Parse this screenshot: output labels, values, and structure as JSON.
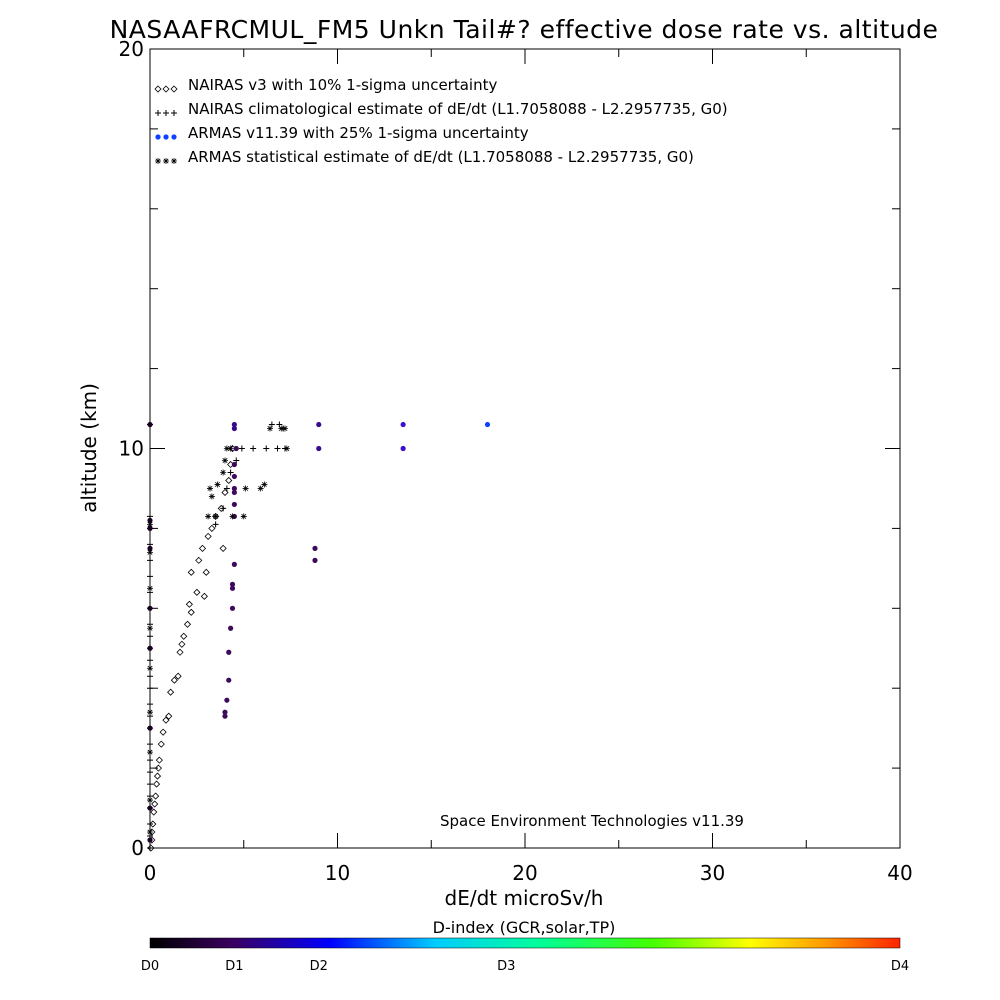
{
  "chart_data": {
    "type": "scatter",
    "title": "NASAAFRCMUL_FM5 Unkn Tail#? effective dose rate vs. altitude",
    "xlabel": "dE/dt microSv/h",
    "ylabel": "altitude (km)",
    "xlim": [
      0,
      40
    ],
    "ylim": [
      0,
      20
    ],
    "x_ticks": [
      "0",
      "10",
      "20",
      "30",
      "40"
    ],
    "y_ticks": [
      "0",
      "10",
      "20"
    ],
    "legend_placement": "top-left",
    "legend": [
      {
        "label": "NAIRAS v3 with 10% 1-sigma uncertainty",
        "marker": "diamond",
        "color": "#000000"
      },
      {
        "label": "NAIRAS climatological estimate of dE/dt (L1.7058088 - L2.2957735, G0)",
        "marker": "plus",
        "color": "#000000"
      },
      {
        "label": "ARMAS v11.39 with 25% 1-sigma uncertainty",
        "marker": "dot",
        "color": "#1040ff"
      },
      {
        "label": "ARMAS statistical estimate of dE/dt (L1.7058088 - L2.2957735, G0)",
        "marker": "asterisk",
        "color": "#000000"
      }
    ],
    "annotation": "Space Environment Technologies v11.39",
    "colorbar": {
      "title": "D-index (GCR,solar,TP)",
      "labels": [
        "D0",
        "D1",
        "D2",
        "D3",
        "D4"
      ],
      "label_values": [
        0,
        0.9,
        1.8,
        3.8,
        8
      ]
    },
    "series": [
      {
        "name": "NAIRAS v3 with 10% 1-sigma uncertainty",
        "marker": "diamond",
        "points": [
          [
            0.05,
            0.0
          ],
          [
            0.1,
            0.2
          ],
          [
            0.1,
            0.4
          ],
          [
            0.15,
            0.6
          ],
          [
            0.2,
            0.9
          ],
          [
            0.25,
            1.1
          ],
          [
            0.3,
            1.3
          ],
          [
            0.35,
            1.6
          ],
          [
            0.4,
            1.8
          ],
          [
            0.45,
            2.0
          ],
          [
            0.5,
            2.2
          ],
          [
            0.6,
            2.6
          ],
          [
            0.7,
            2.9
          ],
          [
            0.85,
            3.2
          ],
          [
            1.0,
            3.3
          ],
          [
            1.1,
            3.9
          ],
          [
            1.3,
            4.2
          ],
          [
            1.5,
            4.3
          ],
          [
            1.6,
            4.9
          ],
          [
            1.7,
            5.1
          ],
          [
            1.8,
            5.3
          ],
          [
            2.0,
            5.6
          ],
          [
            2.2,
            5.9
          ],
          [
            2.1,
            6.1
          ],
          [
            2.5,
            6.4
          ],
          [
            2.9,
            6.3
          ],
          [
            3.0,
            6.9
          ],
          [
            2.2,
            6.9
          ],
          [
            2.6,
            7.2
          ],
          [
            2.8,
            7.5
          ],
          [
            3.1,
            7.8
          ],
          [
            3.3,
            8.0
          ],
          [
            3.5,
            8.3
          ],
          [
            3.9,
            7.5
          ],
          [
            3.8,
            8.5
          ],
          [
            4.0,
            8.9
          ],
          [
            4.2,
            9.2
          ],
          [
            4.3,
            9.6
          ],
          [
            4.4,
            10.0
          ]
        ]
      },
      {
        "name": "NAIRAS climatological estimate of dE/dt (L1.7058088 - L2.2957735, G0)",
        "marker": "plus",
        "points": [
          [
            0.0,
            0.0
          ],
          [
            0.0,
            0.3
          ],
          [
            0.0,
            0.6
          ],
          [
            0.0,
            1.0
          ],
          [
            0.0,
            1.3
          ],
          [
            0.0,
            1.6
          ],
          [
            0.0,
            1.9
          ],
          [
            0.0,
            2.2
          ],
          [
            0.0,
            2.6
          ],
          [
            0.0,
            3.0
          ],
          [
            0.0,
            3.3
          ],
          [
            0.0,
            3.6
          ],
          [
            0.0,
            4.0
          ],
          [
            0.0,
            4.3
          ],
          [
            0.0,
            4.7
          ],
          [
            0.0,
            5.0
          ],
          [
            0.0,
            5.3
          ],
          [
            0.0,
            5.6
          ],
          [
            0.0,
            6.0
          ],
          [
            0.0,
            6.4
          ],
          [
            0.0,
            6.8
          ],
          [
            0.0,
            7.2
          ],
          [
            0.0,
            7.6
          ],
          [
            0.0,
            8.0
          ],
          [
            0.0,
            8.3
          ],
          [
            0.0,
            10.6
          ],
          [
            3.5,
            8.1
          ],
          [
            3.9,
            8.5
          ],
          [
            4.1,
            9.0
          ],
          [
            4.3,
            9.4
          ],
          [
            4.6,
            9.7
          ],
          [
            4.9,
            10.0
          ],
          [
            5.5,
            10.0
          ],
          [
            6.2,
            10.0
          ],
          [
            6.8,
            10.0
          ],
          [
            7.2,
            10.0
          ],
          [
            6.5,
            10.6
          ],
          [
            6.9,
            10.6
          ],
          [
            7.1,
            10.5
          ]
        ]
      },
      {
        "name": "ARMAS v11.39 with 25% 1-sigma uncertainty",
        "marker": "dot",
        "points": [
          [
            4.0,
            3.3,
            1.0
          ],
          [
            4.0,
            3.4,
            1.0
          ],
          [
            4.1,
            3.7,
            1.0
          ],
          [
            4.2,
            4.2,
            1.0
          ],
          [
            4.2,
            4.9,
            1.0
          ],
          [
            4.3,
            5.5,
            1.0
          ],
          [
            4.4,
            6.0,
            1.0
          ],
          [
            4.4,
            6.5,
            1.0
          ],
          [
            4.4,
            6.6,
            1.0
          ],
          [
            4.5,
            7.1,
            1.0
          ],
          [
            4.5,
            8.3,
            1.0
          ],
          [
            4.5,
            8.6,
            1.0
          ],
          [
            4.5,
            8.9,
            1.0
          ],
          [
            4.5,
            9.0,
            1.0
          ],
          [
            4.5,
            9.3,
            1.0
          ],
          [
            4.5,
            9.6,
            1.0
          ],
          [
            4.6,
            10.0,
            1.0
          ],
          [
            4.5,
            10.5,
            1.2
          ],
          [
            4.5,
            10.6,
            1.2
          ],
          [
            8.8,
            7.2,
            1.0
          ],
          [
            8.8,
            7.5,
            1.0
          ],
          [
            9.0,
            10.0,
            1.2
          ],
          [
            9.0,
            10.6,
            1.2
          ],
          [
            13.5,
            10.0,
            1.5
          ],
          [
            13.5,
            10.6,
            1.6
          ],
          [
            18.0,
            10.6,
            2.2
          ],
          [
            0.0,
            0.2,
            0.2
          ],
          [
            0.0,
            1.0,
            0.2
          ],
          [
            0.0,
            3.0,
            0.2
          ],
          [
            0.0,
            5.0,
            0.2
          ],
          [
            0.0,
            6.0,
            0.2
          ],
          [
            0.0,
            7.5,
            0.2
          ],
          [
            0.0,
            8.0,
            0.2
          ],
          [
            0.0,
            8.2,
            0.2
          ],
          [
            0.0,
            10.6,
            0.2
          ]
        ]
      },
      {
        "name": "ARMAS statistical estimate of dE/dt (L1.7058088 - L2.2957735, G0)",
        "marker": "asterisk",
        "points": [
          [
            0.0,
            0.4
          ],
          [
            0.0,
            1.2
          ],
          [
            0.0,
            2.4
          ],
          [
            0.0,
            3.4
          ],
          [
            0.0,
            4.5
          ],
          [
            0.0,
            5.5
          ],
          [
            0.0,
            6.5
          ],
          [
            0.0,
            7.4
          ],
          [
            0.0,
            8.1
          ],
          [
            3.1,
            8.3
          ],
          [
            3.3,
            8.8
          ],
          [
            3.2,
            9.0
          ],
          [
            3.6,
            9.1
          ],
          [
            3.9,
            9.4
          ],
          [
            4.0,
            9.7
          ],
          [
            4.1,
            10.0
          ],
          [
            4.3,
            10.0
          ],
          [
            5.0,
            8.3
          ],
          [
            5.1,
            9.0
          ],
          [
            5.9,
            9.0
          ],
          [
            6.1,
            9.1
          ],
          [
            7.3,
            10.0
          ],
          [
            6.4,
            10.5
          ],
          [
            7.0,
            10.5
          ],
          [
            7.2,
            10.5
          ],
          [
            3.5,
            8.3
          ],
          [
            4.4,
            8.3
          ]
        ]
      }
    ]
  }
}
